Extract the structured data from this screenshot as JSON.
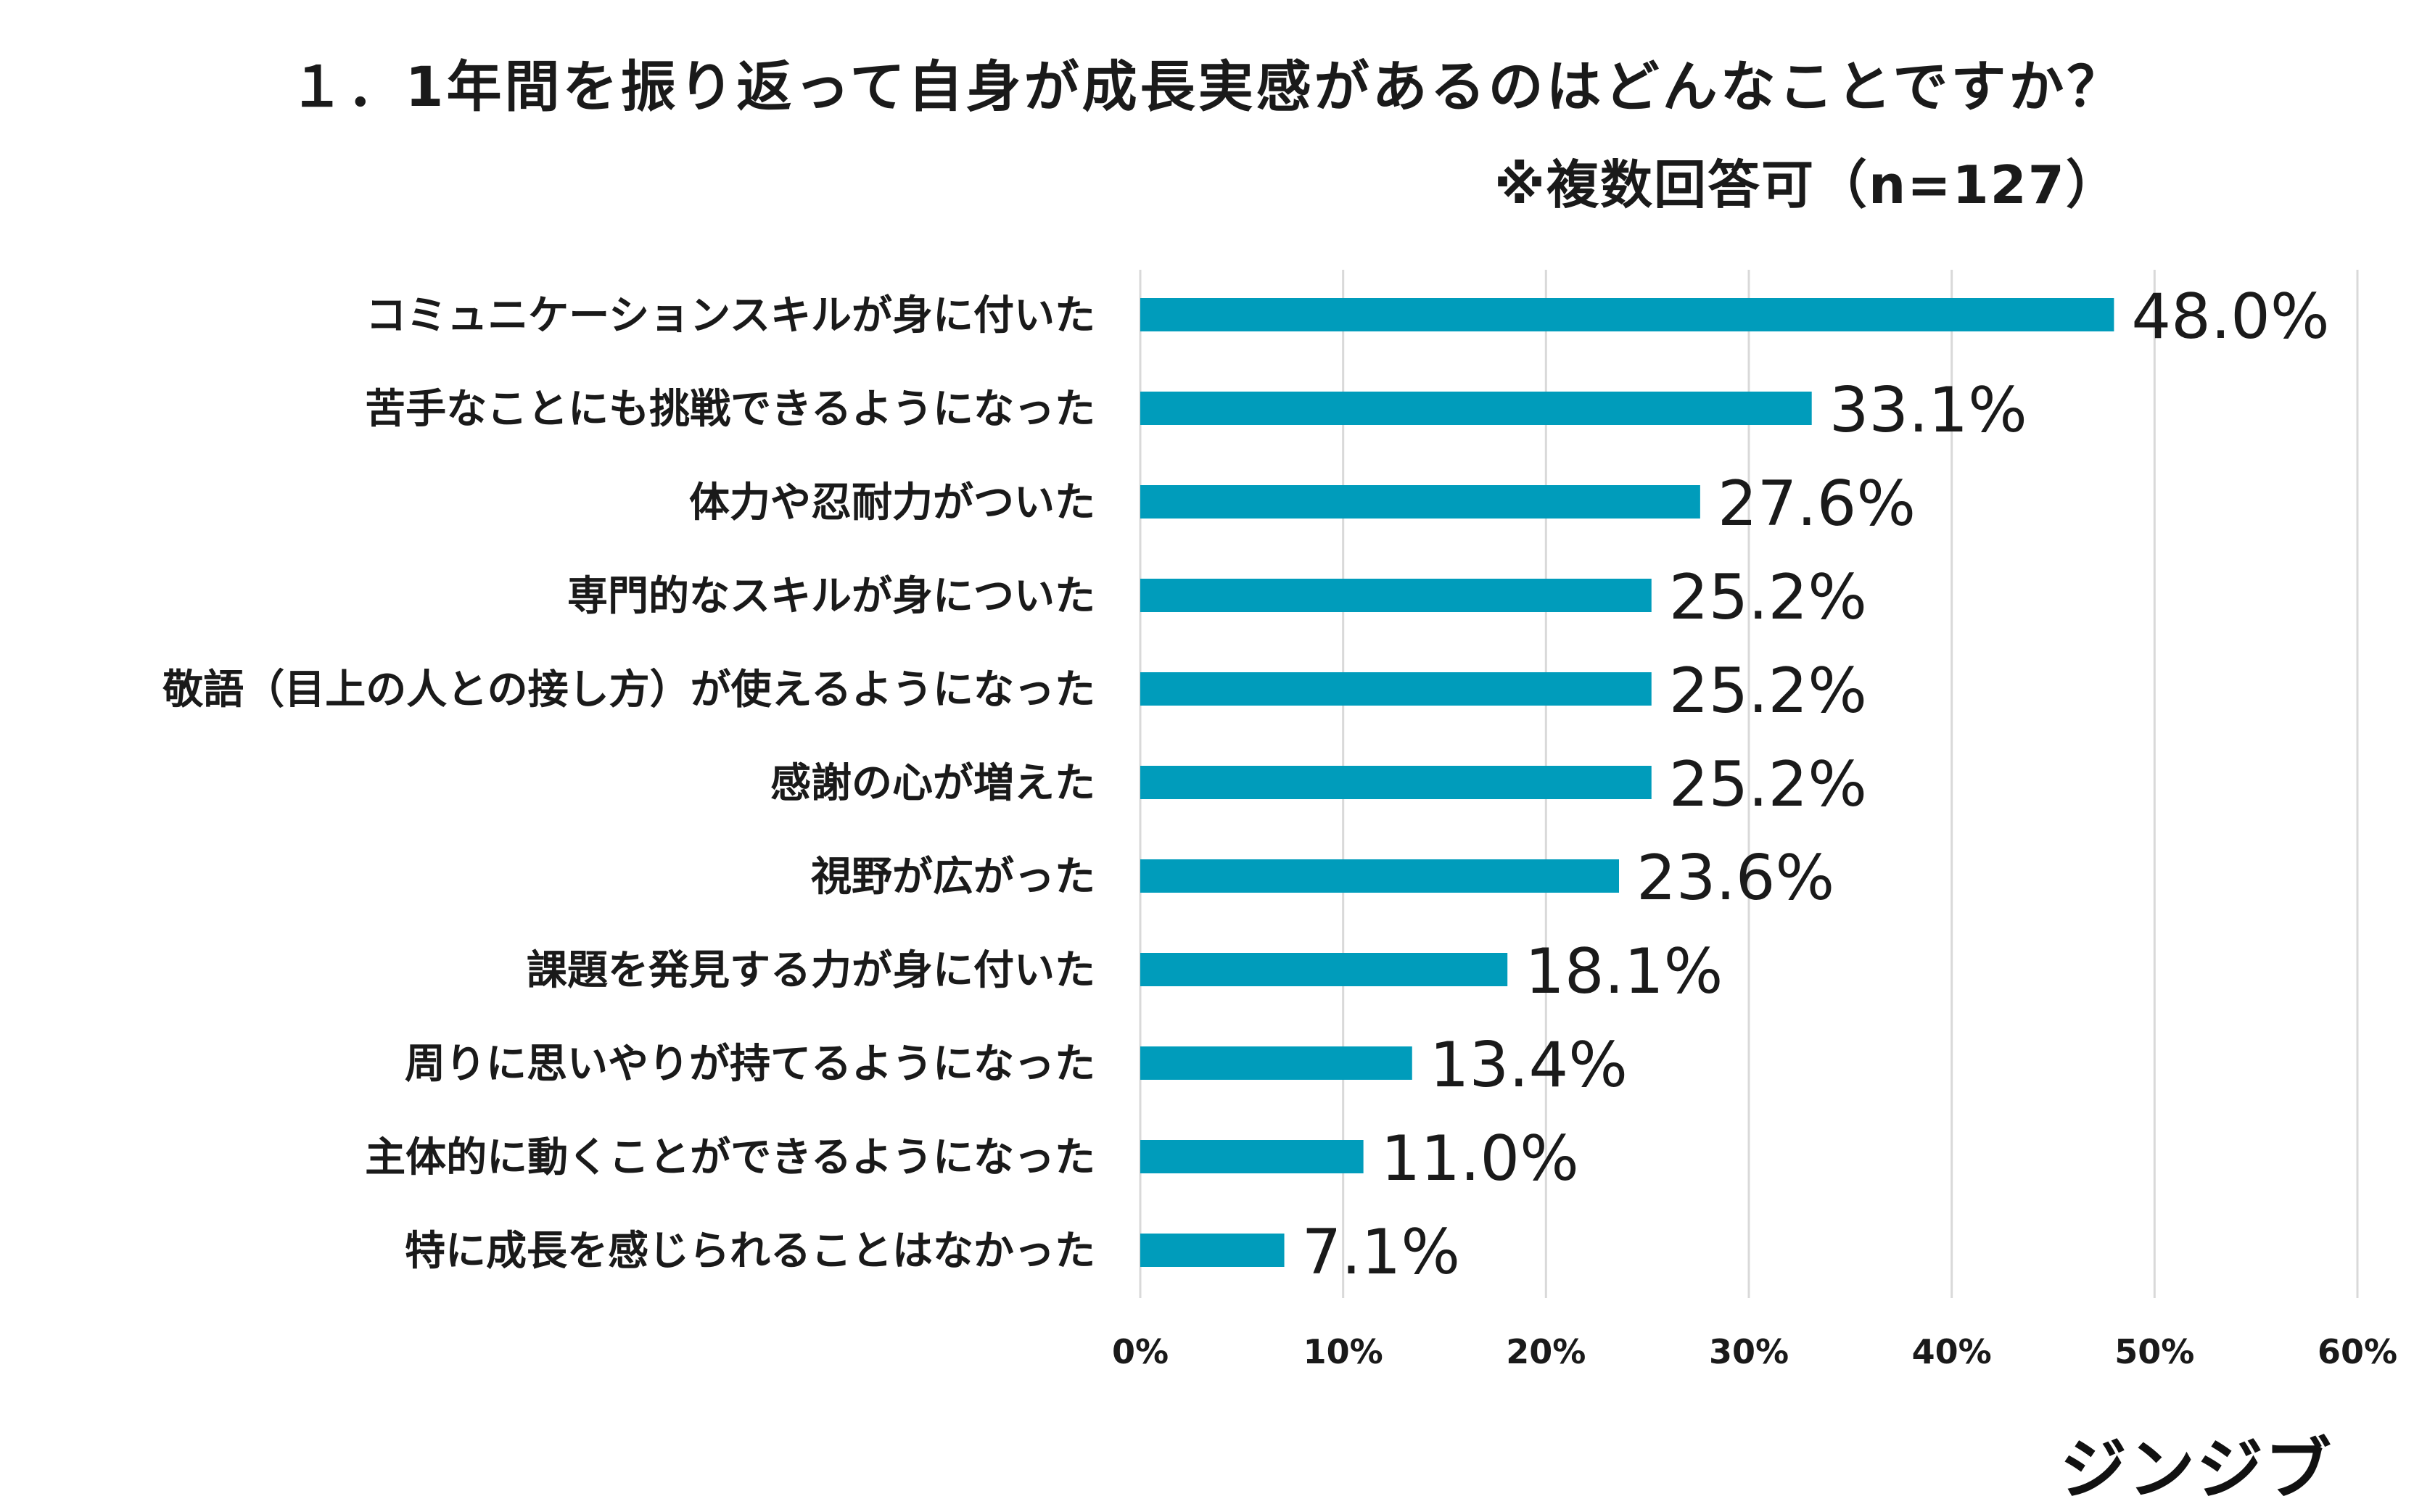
{
  "chart_data": {
    "type": "bar",
    "orientation": "horizontal",
    "title": "１．1年間を振り返って自身が成長実感があるのはどんなことですか？",
    "subtitle": "※複数回答可（n=127）",
    "categories": [
      "コミュニケーションスキルが身に付いた",
      "苦手なことにも挑戦できるようになった",
      "体力や忍耐力がついた",
      "専門的なスキルが身についた",
      "敬語（目上の人との接し方）が使えるようになった",
      "感謝の心が増えた",
      "視野が広がった",
      "課題を発見する力が身に付いた",
      "周りに思いやりが持てるようになった",
      "主体的に動くことができるようになった",
      "特に成長を感じられることはなかった"
    ],
    "values": [
      48.0,
      33.1,
      27.6,
      25.2,
      25.2,
      25.2,
      23.6,
      18.1,
      13.4,
      11.0,
      7.1
    ],
    "value_labels": [
      "48.0%",
      "33.1%",
      "27.6%",
      "25.2%",
      "25.2%",
      "25.2%",
      "23.6%",
      "18.1%",
      "13.4%",
      "11.0%",
      "7.1%"
    ],
    "xlim": [
      0,
      60
    ],
    "x_ticks": [
      0,
      10,
      20,
      30,
      40,
      50,
      60
    ],
    "x_tick_labels": [
      "0%",
      "10%",
      "20%",
      "30%",
      "40%",
      "50%",
      "60%"
    ],
    "grid": true,
    "bar_color": "#009cbb"
  },
  "brand": {
    "logo_text": "ジンジブ"
  }
}
